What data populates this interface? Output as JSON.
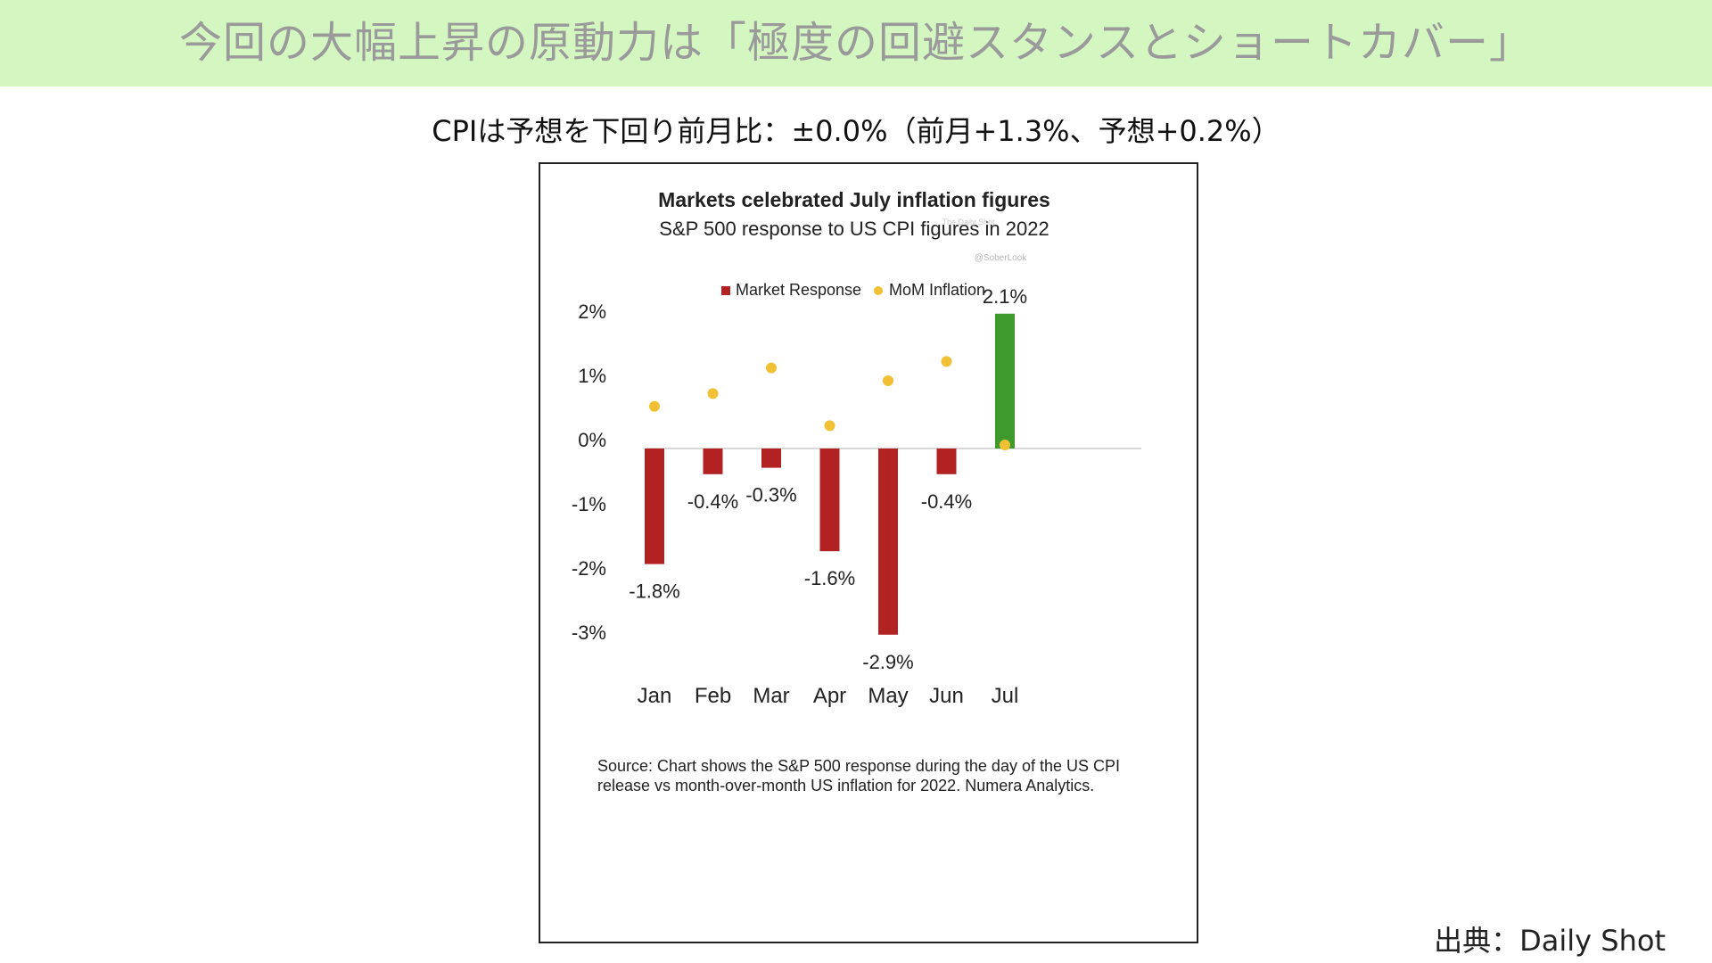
{
  "slide": {
    "title": "今回の大幅上昇の原動力は「極度の回避スタンスとショートカバー」",
    "subheading": "CPIは予想を下回り前月比：±0.0%（前月+1.3%、予想+0.2%）",
    "source_credit": "出典：Daily Shot"
  },
  "colors": {
    "header_band": "#d4f7c2",
    "negative_bar": "#b22222",
    "positive_bar": "#3f9a2e",
    "inflation_dot": "#f2c035"
  },
  "chart_data": {
    "type": "bar",
    "title": "Markets celebrated July inflation figures",
    "subtitle": "S&P 500 response to US CPI figures in 2022",
    "watermark": [
      "The Daily Shot",
      "@SoberLook"
    ],
    "categories": [
      "Jan",
      "Feb",
      "Mar",
      "Apr",
      "May",
      "Jun",
      "Jul"
    ],
    "series": [
      {
        "name": "Market Response",
        "kind": "bar",
        "values": [
          -1.8,
          -0.4,
          -0.3,
          -1.6,
          -2.9,
          -0.4,
          2.1
        ],
        "labels": [
          "-1.8%",
          "-0.4%",
          "-0.3%",
          "-1.6%",
          "-2.9%",
          "-0.4%",
          "2.1%"
        ]
      },
      {
        "name": "MoM Inflation",
        "kind": "scatter",
        "values": [
          0.6,
          0.8,
          1.2,
          0.3,
          1.0,
          1.3,
          0.0
        ]
      }
    ],
    "yticks": [
      2,
      1,
      0,
      -1,
      -2,
      -3
    ],
    "ytick_labels": [
      "2%",
      "1%",
      "0%",
      "-1%",
      "-2%",
      "-3%"
    ],
    "ylim": [
      -3,
      2.1
    ],
    "legend_position": "top-center",
    "grid": false,
    "source_note": [
      "Source: Chart shows the S&P 500 response during the day of the US CPI",
      "release vs month-over-month US inflation for 2022. Numera Analytics."
    ]
  }
}
